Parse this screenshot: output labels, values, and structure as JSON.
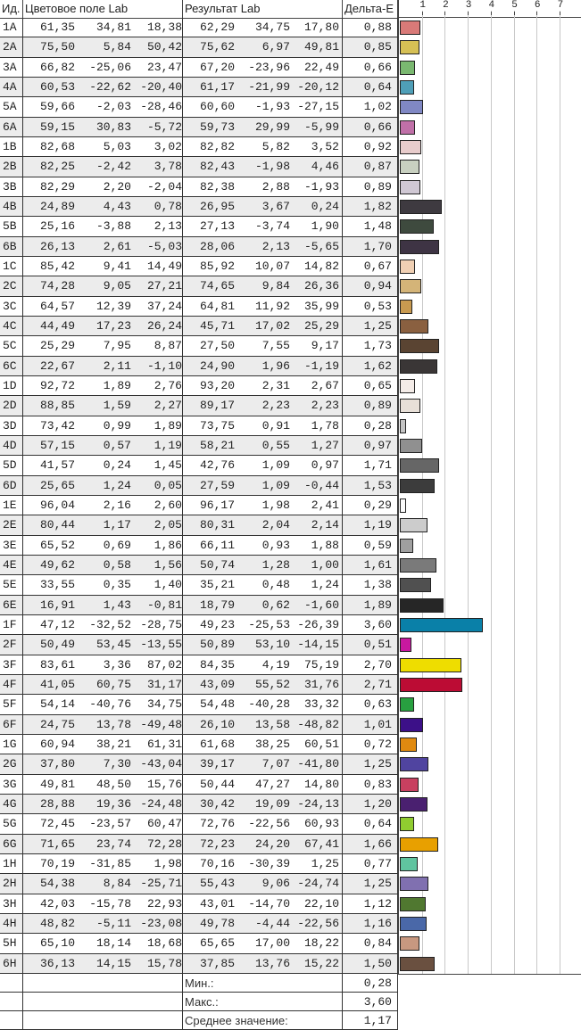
{
  "header": {
    "id": "Ид.",
    "sample": "Цветовое поле Lab",
    "result": "Результат Lab",
    "delta": "Дельта-E"
  },
  "axis": {
    "ticks": [
      "1",
      "2",
      "3",
      "4",
      "5",
      "6",
      "7"
    ],
    "max": 8
  },
  "rows": [
    {
      "id": "1A",
      "s": [
        "61,35",
        "34,81",
        "18,38"
      ],
      "r": [
        "62,29",
        "34,75",
        "17,80"
      ],
      "de": "0,88",
      "v": 0.88,
      "color": "#d97a78"
    },
    {
      "id": "2A",
      "s": [
        "75,50",
        "5,84",
        "50,42"
      ],
      "r": [
        "75,62",
        "6,97",
        "49,81"
      ],
      "de": "0,85",
      "v": 0.85,
      "color": "#d6c055"
    },
    {
      "id": "3A",
      "s": [
        "66,82",
        "-25,06",
        "23,47"
      ],
      "r": [
        "67,20",
        "-23,96",
        "22,49"
      ],
      "de": "0,66",
      "v": 0.66,
      "color": "#7ab870"
    },
    {
      "id": "4A",
      "s": [
        "60,53",
        "-22,62",
        "-20,40"
      ],
      "r": [
        "61,17",
        "-21,99",
        "-20,12"
      ],
      "de": "0,64",
      "v": 0.64,
      "color": "#4f9fb8"
    },
    {
      "id": "5A",
      "s": [
        "59,66",
        "-2,03",
        "-28,46"
      ],
      "r": [
        "60,60",
        "-1,93",
        "-27,15"
      ],
      "de": "1,02",
      "v": 1.02,
      "color": "#8088c4"
    },
    {
      "id": "6A",
      "s": [
        "59,15",
        "30,83",
        "-5,72"
      ],
      "r": [
        "59,73",
        "29,99",
        "-5,99"
      ],
      "de": "0,66",
      "v": 0.66,
      "color": "#c070a8"
    },
    {
      "id": "1B",
      "s": [
        "82,68",
        "5,03",
        "3,02"
      ],
      "r": [
        "82,82",
        "5,82",
        "3,52"
      ],
      "de": "0,92",
      "v": 0.92,
      "color": "#e8cccc"
    },
    {
      "id": "2B",
      "s": [
        "82,25",
        "-2,42",
        "3,78"
      ],
      "r": [
        "82,43",
        "-1,98",
        "4,46"
      ],
      "de": "0,87",
      "v": 0.87,
      "color": "#c8d0c0"
    },
    {
      "id": "3B",
      "s": [
        "82,29",
        "2,20",
        "-2,04"
      ],
      "r": [
        "82,38",
        "2,88",
        "-1,93"
      ],
      "de": "0,89",
      "v": 0.89,
      "color": "#d0c8d4"
    },
    {
      "id": "4B",
      "s": [
        "24,89",
        "4,43",
        "0,78"
      ],
      "r": [
        "26,95",
        "3,67",
        "0,24"
      ],
      "de": "1,82",
      "v": 1.82,
      "color": "#3e3a40"
    },
    {
      "id": "5B",
      "s": [
        "25,16",
        "-3,88",
        "2,13"
      ],
      "r": [
        "27,13",
        "-3,74",
        "1,90"
      ],
      "de": "1,48",
      "v": 1.48,
      "color": "#3e4a3e"
    },
    {
      "id": "6B",
      "s": [
        "26,13",
        "2,61",
        "-5,03"
      ],
      "r": [
        "28,06",
        "2,13",
        "-5,65"
      ],
      "de": "1,70",
      "v": 1.7,
      "color": "#3e3444"
    },
    {
      "id": "1C",
      "s": [
        "85,42",
        "9,41",
        "14,49"
      ],
      "r": [
        "85,92",
        "10,07",
        "14,82"
      ],
      "de": "0,67",
      "v": 0.67,
      "color": "#f0d0b4"
    },
    {
      "id": "2C",
      "s": [
        "74,28",
        "9,05",
        "27,21"
      ],
      "r": [
        "74,65",
        "9,84",
        "26,36"
      ],
      "de": "0,94",
      "v": 0.94,
      "color": "#d4b478"
    },
    {
      "id": "3C",
      "s": [
        "64,57",
        "12,39",
        "37,24"
      ],
      "r": [
        "64,81",
        "11,92",
        "35,99"
      ],
      "de": "0,53",
      "v": 0.53,
      "color": "#c89a50"
    },
    {
      "id": "4C",
      "s": [
        "44,49",
        "17,23",
        "26,24"
      ],
      "r": [
        "45,71",
        "17,02",
        "25,29"
      ],
      "de": "1,25",
      "v": 1.25,
      "color": "#8a6040"
    },
    {
      "id": "5C",
      "s": [
        "25,29",
        "7,95",
        "8,87"
      ],
      "r": [
        "27,50",
        "7,55",
        "9,17"
      ],
      "de": "1,73",
      "v": 1.73,
      "color": "#5a4432"
    },
    {
      "id": "6C",
      "s": [
        "22,67",
        "2,11",
        "-1,10"
      ],
      "r": [
        "24,90",
        "1,96",
        "-1,19"
      ],
      "de": "1,62",
      "v": 1.62,
      "color": "#3a3636"
    },
    {
      "id": "1D",
      "s": [
        "92,72",
        "1,89",
        "2,76"
      ],
      "r": [
        "93,20",
        "2,31",
        "2,67"
      ],
      "de": "0,65",
      "v": 0.65,
      "color": "#f4ece8"
    },
    {
      "id": "2D",
      "s": [
        "88,85",
        "1,59",
        "2,27"
      ],
      "r": [
        "89,17",
        "2,23",
        "2,23"
      ],
      "de": "0,89",
      "v": 0.89,
      "color": "#e8e0d8"
    },
    {
      "id": "3D",
      "s": [
        "73,42",
        "0,99",
        "1,89"
      ],
      "r": [
        "73,75",
        "0,91",
        "1,78"
      ],
      "de": "0,28",
      "v": 0.28,
      "color": "#c4c4c4"
    },
    {
      "id": "4D",
      "s": [
        "57,15",
        "0,57",
        "1,19"
      ],
      "r": [
        "58,21",
        "0,55",
        "1,27"
      ],
      "de": "0,97",
      "v": 0.97,
      "color": "#909090"
    },
    {
      "id": "5D",
      "s": [
        "41,57",
        "0,24",
        "1,45"
      ],
      "r": [
        "42,76",
        "1,09",
        "0,97"
      ],
      "de": "1,71",
      "v": 1.71,
      "color": "#666666"
    },
    {
      "id": "6D",
      "s": [
        "25,65",
        "1,24",
        "0,05"
      ],
      "r": [
        "27,59",
        "1,09",
        "-0,44"
      ],
      "de": "1,53",
      "v": 1.53,
      "color": "#3c3c3c"
    },
    {
      "id": "1E",
      "s": [
        "96,04",
        "2,16",
        "2,60"
      ],
      "r": [
        "96,17",
        "1,98",
        "2,41"
      ],
      "de": "0,29",
      "v": 0.29,
      "color": "#fbfbfb"
    },
    {
      "id": "2E",
      "s": [
        "80,44",
        "1,17",
        "2,05"
      ],
      "r": [
        "80,31",
        "2,04",
        "2,14"
      ],
      "de": "1,19",
      "v": 1.19,
      "color": "#cccccc"
    },
    {
      "id": "3E",
      "s": [
        "65,52",
        "0,69",
        "1,86"
      ],
      "r": [
        "66,11",
        "0,93",
        "1,88"
      ],
      "de": "0,59",
      "v": 0.59,
      "color": "#a0a0a0"
    },
    {
      "id": "4E",
      "s": [
        "49,62",
        "0,58",
        "1,56"
      ],
      "r": [
        "50,74",
        "1,28",
        "1,00"
      ],
      "de": "1,61",
      "v": 1.61,
      "color": "#7a7a7a"
    },
    {
      "id": "5E",
      "s": [
        "33,55",
        "0,35",
        "1,40"
      ],
      "r": [
        "35,21",
        "0,48",
        "1,24"
      ],
      "de": "1,38",
      "v": 1.38,
      "color": "#505050"
    },
    {
      "id": "6E",
      "s": [
        "16,91",
        "1,43",
        "-0,81"
      ],
      "r": [
        "18,79",
        "0,62",
        "-1,60"
      ],
      "de": "1,89",
      "v": 1.89,
      "color": "#262626"
    },
    {
      "id": "1F",
      "s": [
        "47,12",
        "-32,52",
        "-28,75"
      ],
      "r": [
        "49,23",
        "-25,53",
        "-26,39"
      ],
      "de": "3,60",
      "v": 3.6,
      "color": "#0a80a8"
    },
    {
      "id": "2F",
      "s": [
        "50,49",
        "53,45",
        "-13,55"
      ],
      "r": [
        "50,89",
        "53,10",
        "-14,15"
      ],
      "de": "0,51",
      "v": 0.51,
      "color": "#c818a0"
    },
    {
      "id": "3F",
      "s": [
        "83,61",
        "3,36",
        "87,02"
      ],
      "r": [
        "84,35",
        "4,19",
        "75,19"
      ],
      "de": "2,70",
      "v": 2.7,
      "color": "#eedd00"
    },
    {
      "id": "4F",
      "s": [
        "41,05",
        "60,75",
        "31,17"
      ],
      "r": [
        "43,09",
        "55,52",
        "31,76"
      ],
      "de": "2,71",
      "v": 2.71,
      "color": "#bc0c34"
    },
    {
      "id": "5F",
      "s": [
        "54,14",
        "-40,76",
        "34,75"
      ],
      "r": [
        "54,48",
        "-40,28",
        "33,32"
      ],
      "de": "0,63",
      "v": 0.63,
      "color": "#28a040"
    },
    {
      "id": "6F",
      "s": [
        "24,75",
        "13,78",
        "-49,48"
      ],
      "r": [
        "26,10",
        "13,58",
        "-48,82"
      ],
      "de": "1,01",
      "v": 1.01,
      "color": "#3c1088"
    },
    {
      "id": "1G",
      "s": [
        "60,94",
        "38,21",
        "61,31"
      ],
      "r": [
        "61,68",
        "38,25",
        "60,51"
      ],
      "de": "0,72",
      "v": 0.72,
      "color": "#e08a10"
    },
    {
      "id": "2G",
      "s": [
        "37,80",
        "7,30",
        "-43,04"
      ],
      "r": [
        "39,17",
        "7,07",
        "-41,80"
      ],
      "de": "1,25",
      "v": 1.25,
      "color": "#5044a0"
    },
    {
      "id": "3G",
      "s": [
        "49,81",
        "48,50",
        "15,76"
      ],
      "r": [
        "50,44",
        "47,27",
        "14,80"
      ],
      "de": "0,83",
      "v": 0.83,
      "color": "#c84060"
    },
    {
      "id": "4G",
      "s": [
        "28,88",
        "19,36",
        "-24,48"
      ],
      "r": [
        "30,42",
        "19,09",
        "-24,13"
      ],
      "de": "1,20",
      "v": 1.2,
      "color": "#4a2070"
    },
    {
      "id": "5G",
      "s": [
        "72,45",
        "-23,57",
        "60,47"
      ],
      "r": [
        "72,76",
        "-22,56",
        "60,93"
      ],
      "de": "0,64",
      "v": 0.64,
      "color": "#90cc30"
    },
    {
      "id": "6G",
      "s": [
        "71,65",
        "23,74",
        "72,28"
      ],
      "r": [
        "72,23",
        "24,20",
        "67,41"
      ],
      "de": "1,66",
      "v": 1.66,
      "color": "#e8a000"
    },
    {
      "id": "1H",
      "s": [
        "70,19",
        "-31,85",
        "1,98"
      ],
      "r": [
        "70,16",
        "-30,39",
        "1,25"
      ],
      "de": "0,77",
      "v": 0.77,
      "color": "#60c4a0"
    },
    {
      "id": "2H",
      "s": [
        "54,38",
        "8,84",
        "-25,71"
      ],
      "r": [
        "55,43",
        "9,06",
        "-24,74"
      ],
      "de": "1,25",
      "v": 1.25,
      "color": "#8070b0"
    },
    {
      "id": "3H",
      "s": [
        "42,03",
        "-15,78",
        "22,93"
      ],
      "r": [
        "43,01",
        "-14,70",
        "22,10"
      ],
      "de": "1,12",
      "v": 1.12,
      "color": "#507830"
    },
    {
      "id": "4H",
      "s": [
        "48,82",
        "-5,11",
        "-23,08"
      ],
      "r": [
        "49,78",
        "-4,44",
        "-22,56"
      ],
      "de": "1,16",
      "v": 1.16,
      "color": "#4a68a8"
    },
    {
      "id": "5H",
      "s": [
        "65,10",
        "18,14",
        "18,68"
      ],
      "r": [
        "65,65",
        "17,00",
        "18,22"
      ],
      "de": "0,84",
      "v": 0.84,
      "color": "#c89880"
    },
    {
      "id": "6H",
      "s": [
        "36,13",
        "14,15",
        "15,78"
      ],
      "r": [
        "37,85",
        "13,76",
        "15,22"
      ],
      "de": "1,50",
      "v": 1.5,
      "color": "#6a5040"
    }
  ],
  "summary": [
    {
      "label": "Мин.:",
      "value": "0,28"
    },
    {
      "label": "Макс.:",
      "value": "3,60"
    },
    {
      "label": "Среднее значение:",
      "value": "1,17"
    }
  ]
}
